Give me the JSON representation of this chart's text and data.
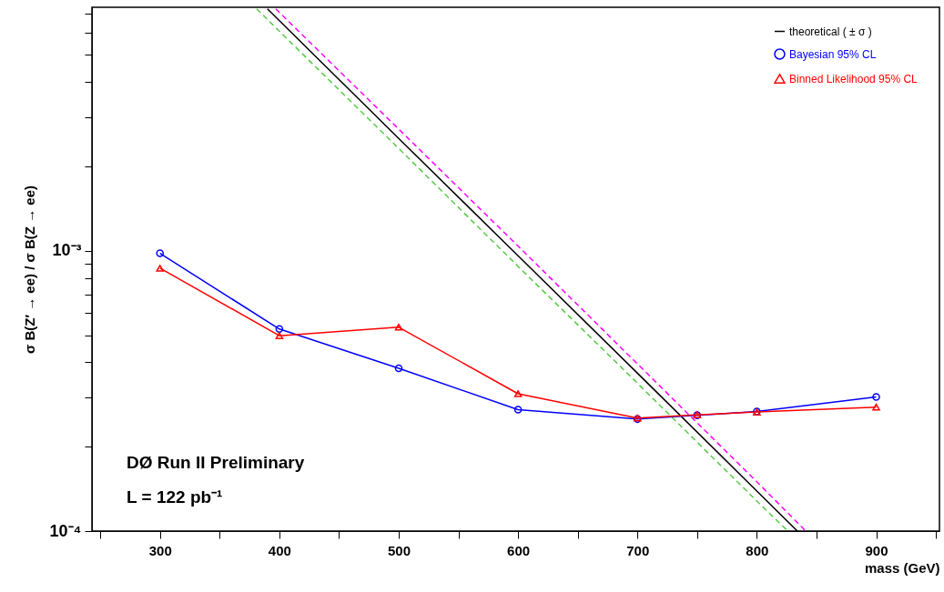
{
  "chart_data": {
    "type": "line",
    "xlabel": "mass (GeV)",
    "ylabel": "σ B(Z′ → ee) / σ B(Z → ee)",
    "annotations": [
      "DØ  Run II Preliminary",
      "L = 122 pb⁻¹"
    ],
    "log": "y",
    "grid": false,
    "legend": "top right",
    "xlim": [
      243,
      953
    ],
    "xticks": [
      {
        "value": 250,
        "label": null
      },
      300,
      {
        "value": 350,
        "label": null
      },
      400,
      {
        "value": 450,
        "label": null
      },
      500,
      {
        "value": 550,
        "label": null
      },
      600,
      {
        "value": 650,
        "label": null
      },
      700,
      {
        "value": 750,
        "label": null
      },
      800,
      {
        "value": 850,
        "label": null
      },
      900,
      {
        "value": 950,
        "label": null
      }
    ],
    "ylim": [
      0.0001,
      0.0074
    ],
    "yticks": [
      {
        "value": 0.0001,
        "label": "10⁻⁴"
      },
      {
        "value": 0.0002,
        "label": null
      },
      {
        "value": 0.0003,
        "label": null
      },
      {
        "value": 0.0004,
        "label": null
      },
      {
        "value": 0.0005,
        "label": null
      },
      {
        "value": 0.0006,
        "label": null
      },
      {
        "value": 0.0007,
        "label": null
      },
      {
        "value": 0.0008,
        "label": null
      },
      {
        "value": 0.0009,
        "label": null
      },
      {
        "value": 0.001,
        "label": "10⁻³"
      },
      {
        "value": 0.002,
        "label": null
      },
      {
        "value": 0.003,
        "label": null
      },
      {
        "value": 0.004,
        "label": null
      },
      {
        "value": 0.005,
        "label": null
      },
      {
        "value": 0.006,
        "label": null
      },
      {
        "value": 0.007,
        "label": null
      }
    ],
    "series": [
      {
        "name": "theoretical ( ± σ )",
        "color": "#000000",
        "line_style": "solid",
        "marker": "none",
        "x": [
          390,
          500,
          600,
          700,
          800,
          834
        ],
        "values": [
          0.0073,
          0.00252,
          0.00096,
          0.000366,
          0.000139,
          0.0001
        ]
      },
      {
        "color": "#ff00ff",
        "line_style": "dashed",
        "marker": "none",
        "x": [
          397,
          500,
          600,
          700,
          800,
          841
        ],
        "values": [
          0.0073,
          0.00272,
          0.00104,
          0.000395,
          0.00015,
          0.0001
        ]
      },
      {
        "color": "#55cc44",
        "line_style": "dashed",
        "marker": "none",
        "x": [
          381,
          500,
          600,
          700,
          800,
          826
        ],
        "values": [
          0.0073,
          0.00232,
          0.00088,
          0.000337,
          0.000128,
          0.0001
        ]
      },
      {
        "name": "Bayesian 95% CL",
        "color": "#0000ff",
        "line_style": "solid",
        "marker": "circle",
        "x": [
          300,
          400,
          500,
          600,
          700,
          750,
          800,
          900
        ],
        "values": [
          0.00098,
          0.000526,
          0.000381,
          0.000271,
          0.000251,
          0.000259,
          0.000267,
          0.000301
        ]
      },
      {
        "name": "Binned  Likelihood 95% CL",
        "color": "#ff0000",
        "line_style": "solid",
        "marker": "triangle",
        "x": [
          300,
          400,
          500,
          600,
          700,
          750,
          800,
          900
        ],
        "values": [
          0.000867,
          0.000498,
          0.000534,
          0.000309,
          0.000253,
          0.00026,
          0.000266,
          0.000277
        ]
      }
    ]
  }
}
